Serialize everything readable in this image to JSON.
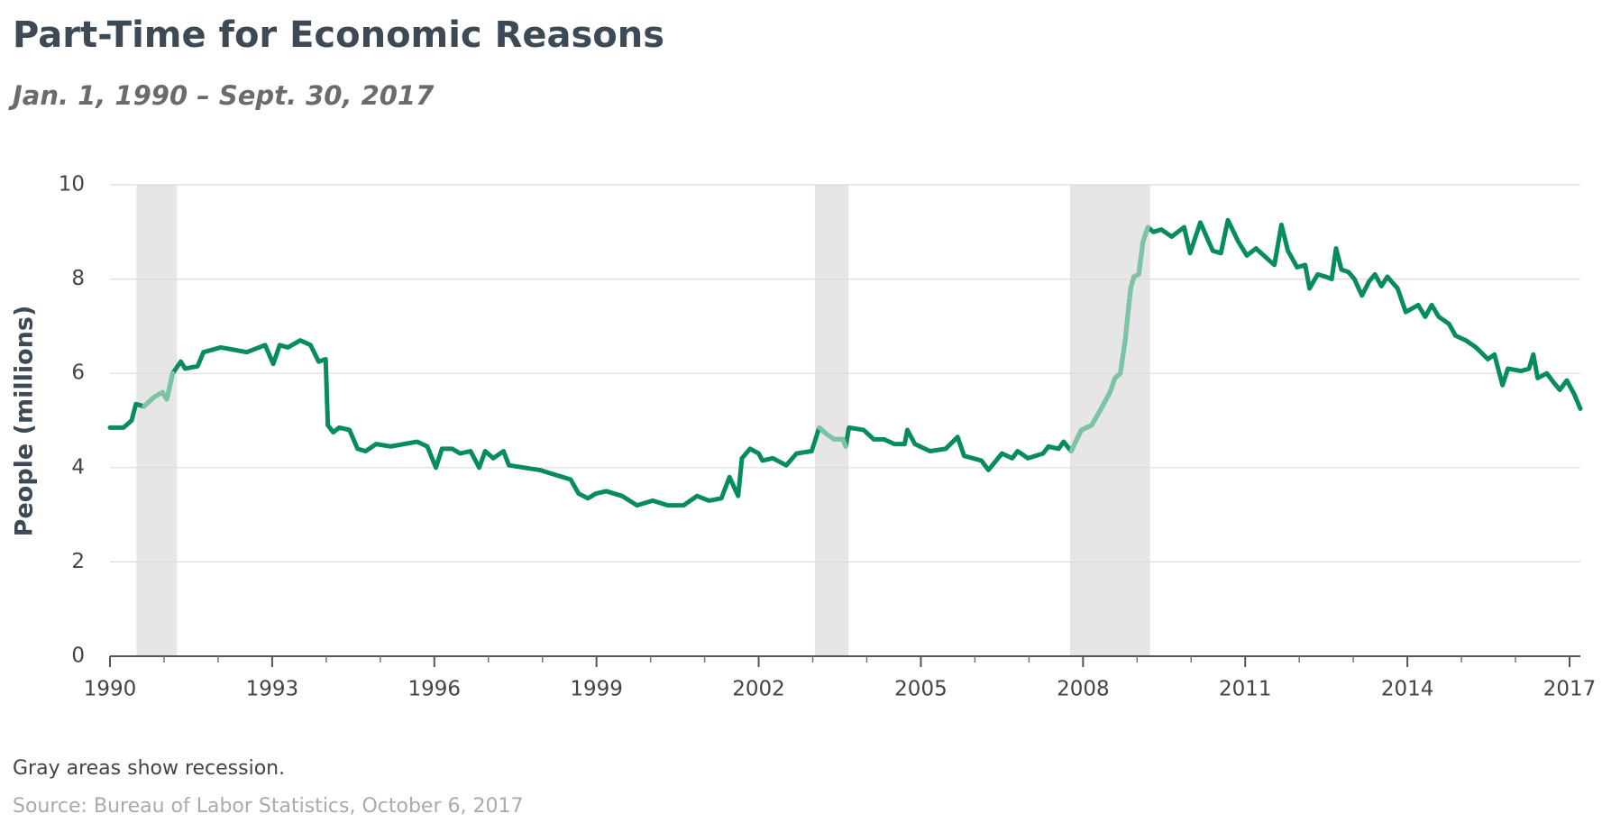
{
  "chart_data": {
    "type": "line",
    "title": "Part-Time for Economic Reasons",
    "subtitle": "Jan. 1, 1990 – Sept. 30, 2017",
    "y_label": "People (millions)",
    "note": "Gray areas show recession.",
    "source": "Source: Bureau of Labor Statistics, October 6, 2017",
    "xlim": [
      1990,
      2017.2
    ],
    "ylim": [
      0,
      10
    ],
    "yticks": [
      0,
      2,
      4,
      6,
      8,
      10
    ],
    "xticks": [
      1990,
      1993,
      1996,
      1999,
      2002,
      2005,
      2008,
      2011,
      2014,
      2017
    ],
    "x_minor_ticks": [
      1991,
      1992,
      1994,
      1995,
      1997,
      1998,
      2000,
      2001,
      2003,
      2004,
      2006,
      2007,
      2009,
      2010,
      2012,
      2013,
      2015,
      2016
    ],
    "grid": true,
    "recession_shade_color": "#e6e6e6",
    "recession_line_color": "#7cc4a4",
    "recessions": [
      [
        1990.49,
        1991.24
      ],
      [
        2003.04,
        2003.66
      ],
      [
        2007.76,
        2009.24
      ]
    ],
    "series": [
      {
        "name": "People (millions)",
        "color": "#078c5c",
        "x": [
          1990.0,
          1990.25,
          1990.4,
          1990.48,
          1990.63,
          1990.82,
          1990.97,
          1991.05,
          1991.16,
          1991.31,
          1991.39,
          1991.62,
          1991.73,
          1992.05,
          1992.53,
          1992.87,
          1993.02,
          1993.14,
          1993.29,
          1993.52,
          1993.71,
          1993.86,
          1993.99,
          1994.03,
          1994.13,
          1994.24,
          1994.43,
          1994.58,
          1994.73,
          1994.92,
          1995.19,
          1995.68,
          1995.87,
          1996.03,
          1996.14,
          1996.33,
          1996.48,
          1996.67,
          1996.83,
          1996.94,
          1997.09,
          1997.28,
          1997.38,
          1997.66,
          1997.95,
          1998.23,
          1998.52,
          1998.67,
          1998.84,
          1998.99,
          1999.18,
          1999.47,
          1999.75,
          2000.04,
          2000.32,
          2000.61,
          2000.86,
          2001.08,
          2001.31,
          2001.46,
          2001.62,
          2001.69,
          2001.84,
          2002.0,
          2002.07,
          2002.26,
          2002.51,
          2002.7,
          2002.98,
          2003.12,
          2003.27,
          2003.4,
          2003.56,
          2003.61,
          2003.67,
          2003.94,
          2004.13,
          2004.32,
          2004.51,
          2004.7,
          2004.75,
          2004.89,
          2005.17,
          2005.46,
          2005.68,
          2005.8,
          2006.12,
          2006.25,
          2006.5,
          2006.69,
          2006.79,
          2006.98,
          2007.26,
          2007.36,
          2007.55,
          2007.64,
          2007.78,
          2007.97,
          2008.16,
          2008.31,
          2008.5,
          2008.59,
          2008.69,
          2008.78,
          2008.88,
          2008.94,
          2009.03,
          2009.11,
          2009.2,
          2009.3,
          2009.45,
          2009.64,
          2009.87,
          2009.98,
          2010.17,
          2010.4,
          2010.55,
          2010.68,
          2010.87,
          2011.03,
          2011.2,
          2011.44,
          2011.54,
          2011.67,
          2011.79,
          2011.96,
          2012.11,
          2012.19,
          2012.34,
          2012.49,
          2012.6,
          2012.68,
          2012.78,
          2012.91,
          2013.02,
          2013.16,
          2013.29,
          2013.4,
          2013.52,
          2013.63,
          2013.82,
          2013.97,
          2014.2,
          2014.33,
          2014.45,
          2014.58,
          2014.77,
          2014.89,
          2015.08,
          2015.27,
          2015.49,
          2015.61,
          2015.76,
          2015.86,
          2016.1,
          2016.25,
          2016.33,
          2016.41,
          2016.58,
          2016.71,
          2016.82,
          2016.95,
          2017.09,
          2017.2
        ],
        "values": [
          4.85,
          4.85,
          5.0,
          5.35,
          5.3,
          5.5,
          5.6,
          5.45,
          6.0,
          6.25,
          6.1,
          6.15,
          6.45,
          6.55,
          6.45,
          6.6,
          6.2,
          6.6,
          6.55,
          6.7,
          6.6,
          6.25,
          6.3,
          4.9,
          4.75,
          4.85,
          4.8,
          4.4,
          4.35,
          4.5,
          4.45,
          4.55,
          4.45,
          4.0,
          4.4,
          4.4,
          4.3,
          4.35,
          4.0,
          4.35,
          4.2,
          4.35,
          4.05,
          4.0,
          3.95,
          3.85,
          3.75,
          3.45,
          3.35,
          3.45,
          3.5,
          3.4,
          3.2,
          3.3,
          3.2,
          3.2,
          3.4,
          3.3,
          3.35,
          3.8,
          3.4,
          4.2,
          4.4,
          4.3,
          4.15,
          4.2,
          4.05,
          4.3,
          4.35,
          4.85,
          4.7,
          4.6,
          4.6,
          4.45,
          4.85,
          4.8,
          4.6,
          4.6,
          4.5,
          4.5,
          4.8,
          4.5,
          4.35,
          4.4,
          4.65,
          4.25,
          4.15,
          3.95,
          4.3,
          4.2,
          4.35,
          4.2,
          4.3,
          4.45,
          4.4,
          4.55,
          4.35,
          4.8,
          4.9,
          5.2,
          5.6,
          5.9,
          6.0,
          6.7,
          7.8,
          8.05,
          8.1,
          8.8,
          9.1,
          9.0,
          9.05,
          8.9,
          9.1,
          8.55,
          9.2,
          8.6,
          8.55,
          9.25,
          8.8,
          8.5,
          8.65,
          8.4,
          8.3,
          9.15,
          8.6,
          8.25,
          8.3,
          7.8,
          8.1,
          8.05,
          8.0,
          8.65,
          8.2,
          8.15,
          8.0,
          7.65,
          7.95,
          8.1,
          7.85,
          8.05,
          7.8,
          7.3,
          7.45,
          7.2,
          7.45,
          7.2,
          7.05,
          6.8,
          6.7,
          6.55,
          6.3,
          6.4,
          5.75,
          6.1,
          6.05,
          6.1,
          6.4,
          5.9,
          6.0,
          5.8,
          5.65,
          5.85,
          5.55,
          5.25
        ]
      }
    ]
  }
}
